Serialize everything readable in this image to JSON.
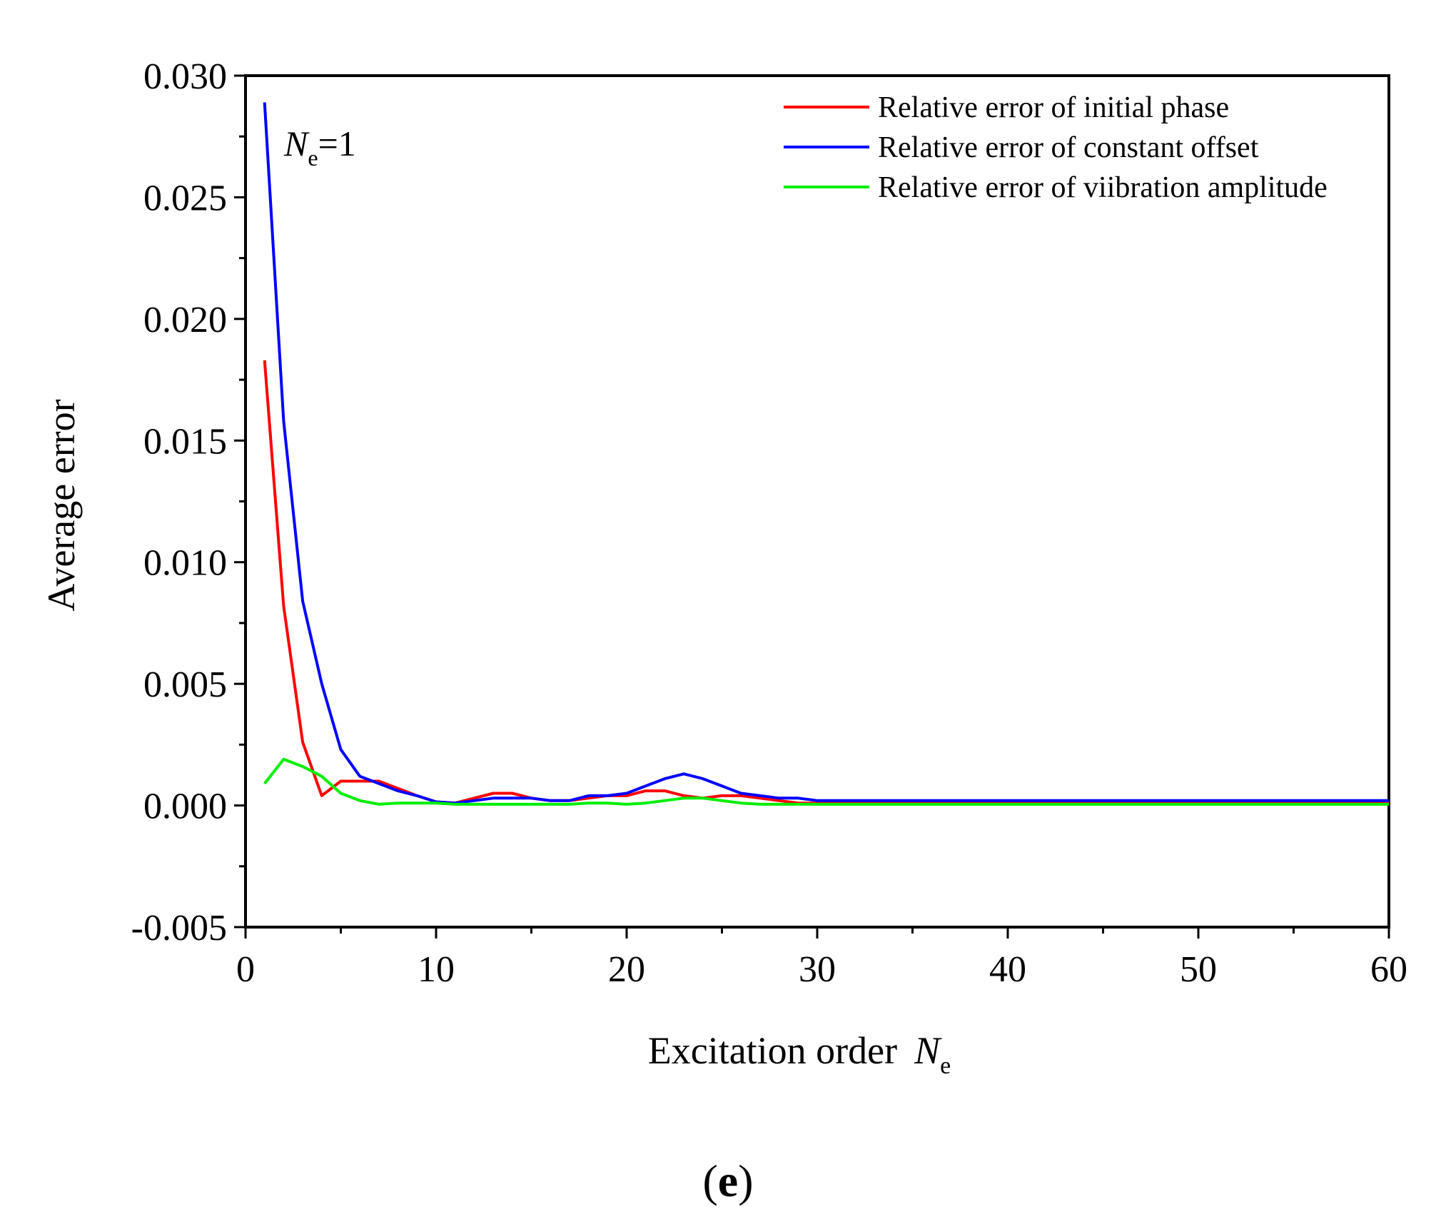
{
  "panel_label": {
    "open": "(",
    "letter": "e",
    "close": ")"
  },
  "annotation": {
    "symbol": "N",
    "subscript": "e",
    "suffix": "=1"
  },
  "chart_data": {
    "type": "line",
    "title": "",
    "xlabel": "Excitation order",
    "xlabel_symbol": "N",
    "xlabel_subscript": "e",
    "ylabel": "Average error",
    "xlim": [
      0,
      60
    ],
    "ylim": [
      -0.005,
      0.03
    ],
    "xticks": [
      0,
      10,
      20,
      30,
      40,
      50,
      60
    ],
    "xtick_labels": [
      "0",
      "10",
      "20",
      "30",
      "40",
      "50",
      "60"
    ],
    "yticks": [
      -0.005,
      0,
      0.005,
      0.01,
      0.015,
      0.02,
      0.025,
      0.03
    ],
    "ytick_labels": [
      "-0.005",
      "0.000",
      "0.005",
      "0.010",
      "0.015",
      "0.020",
      "0.025",
      "0.030"
    ],
    "grid": false,
    "legend_position": "top-right",
    "x": [
      1,
      2,
      3,
      4,
      5,
      6,
      7,
      8,
      9,
      10,
      11,
      12,
      13,
      14,
      15,
      16,
      17,
      18,
      19,
      20,
      21,
      22,
      23,
      24,
      25,
      26,
      27,
      28,
      29,
      30,
      31,
      32,
      33,
      34,
      35,
      36,
      37,
      38,
      39,
      40,
      41,
      42,
      43,
      44,
      45,
      46,
      47,
      48,
      49,
      50,
      51,
      52,
      53,
      54,
      55,
      56,
      57,
      58,
      59,
      60
    ],
    "series": [
      {
        "name": "Relative error of initial phase",
        "color": "#ff0000",
        "values": [
          0.0183,
          0.0082,
          0.0026,
          0.0004,
          0.001,
          0.001,
          0.001,
          0.0007,
          0.0004,
          0.00015,
          0.0001,
          0.0003,
          0.0005,
          0.0005,
          0.0003,
          0.0002,
          0.0002,
          0.0003,
          0.0004,
          0.0004,
          0.0006,
          0.0006,
          0.0004,
          0.0003,
          0.0004,
          0.0004,
          0.0003,
          0.0002,
          0.0001,
          0.0001,
          0.0001,
          0.0001,
          0.0001,
          0.0001,
          0.0001,
          0.0001,
          0.0001,
          0.0001,
          0.0001,
          0.0001,
          0.0001,
          0.0001,
          0.0001,
          0.0001,
          0.0001,
          0.0001,
          0.0001,
          0.0001,
          0.0001,
          0.0001,
          0.0001,
          0.0001,
          0.0001,
          0.0001,
          0.0001,
          0.0001,
          0.0001,
          0.0001,
          0.0001,
          0.0001
        ]
      },
      {
        "name": "Relative error of constant offset",
        "color": "#0000ff",
        "values": [
          0.0289,
          0.0158,
          0.0084,
          0.005,
          0.0023,
          0.0012,
          0.0009,
          0.0006,
          0.0004,
          0.00015,
          0.0001,
          0.0002,
          0.0003,
          0.0003,
          0.0003,
          0.0002,
          0.0002,
          0.0004,
          0.0004,
          0.0005,
          0.0008,
          0.0011,
          0.0013,
          0.0011,
          0.0008,
          0.0005,
          0.0004,
          0.0003,
          0.0003,
          0.0002,
          0.0002,
          0.0002,
          0.0002,
          0.0002,
          0.0002,
          0.0002,
          0.0002,
          0.0002,
          0.0002,
          0.0002,
          0.0002,
          0.0002,
          0.0002,
          0.0002,
          0.0002,
          0.0002,
          0.0002,
          0.0002,
          0.0002,
          0.0002,
          0.0002,
          0.0002,
          0.0002,
          0.0002,
          0.0002,
          0.0002,
          0.0002,
          0.0002,
          0.0002,
          0.0002
        ]
      },
      {
        "name": "Relative error of viibration amplitude",
        "color": "#00ee00",
        "values": [
          0.0009,
          0.0019,
          0.0016,
          0.0012,
          0.0005,
          0.0002,
          5e-05,
          0.0001,
          0.0001,
          0.0001,
          5e-05,
          5e-05,
          5e-05,
          5e-05,
          5e-05,
          5e-05,
          5e-05,
          0.0001,
          0.0001,
          5e-05,
          0.0001,
          0.0002,
          0.0003,
          0.0003,
          0.0002,
          0.0001,
          5e-05,
          5e-05,
          5e-05,
          5e-05,
          5e-05,
          5e-05,
          5e-05,
          5e-05,
          5e-05,
          5e-05,
          5e-05,
          5e-05,
          5e-05,
          5e-05,
          5e-05,
          5e-05,
          5e-05,
          5e-05,
          5e-05,
          5e-05,
          5e-05,
          5e-05,
          5e-05,
          5e-05,
          5e-05,
          5e-05,
          5e-05,
          5e-05,
          5e-05,
          5e-05,
          5e-05,
          5e-05,
          5e-05,
          5e-05
        ]
      }
    ]
  }
}
